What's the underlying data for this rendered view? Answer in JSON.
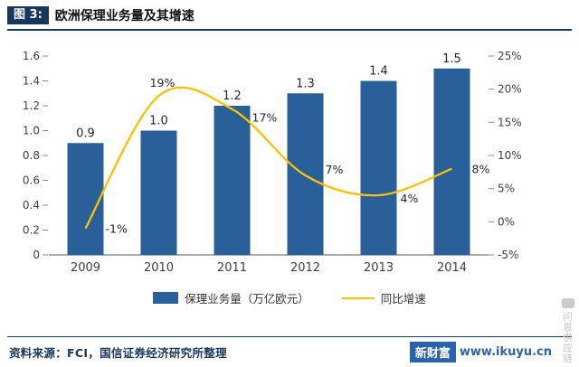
{
  "header": {
    "figure_tag": "图 3:",
    "title": "欧洲保理业务量及其增速"
  },
  "chart_data": {
    "type": "bar",
    "combo": "bar+line",
    "title": "欧洲保理业务量及其增速",
    "categories": [
      "2009",
      "2010",
      "2011",
      "2012",
      "2013",
      "2014"
    ],
    "series": [
      {
        "name": "保理业务量（万亿欧元）",
        "type": "bar",
        "axis": "left",
        "color": "#2A6099",
        "values": [
          0.9,
          1.0,
          1.2,
          1.3,
          1.4,
          1.5
        ],
        "labels": [
          "0.9",
          "1.0",
          "1.2",
          "1.3",
          "1.4",
          "1.5"
        ]
      },
      {
        "name": "同比增速",
        "type": "line",
        "axis": "right",
        "color": "#FFC000",
        "values": [
          -1,
          19,
          17,
          7,
          4,
          8
        ],
        "labels": [
          "-1%",
          "19%",
          "17%",
          "7%",
          "4%",
          "8%"
        ],
        "label_offsets": [
          [
            22,
            5,
            "start"
          ],
          [
            4,
            -10,
            "middle"
          ],
          [
            22,
            14,
            "start"
          ],
          [
            22,
            -2,
            "start"
          ],
          [
            24,
            8,
            "start"
          ],
          [
            22,
            5,
            "start"
          ]
        ]
      }
    ],
    "left_axis": {
      "min": 0,
      "max": 1.6,
      "step": 0.2,
      "ticks": [
        "0",
        "0.2",
        "0.4",
        "0.6",
        "0.8",
        "1.0",
        "1.2",
        "1.4",
        "1.6"
      ]
    },
    "right_axis": {
      "min": -5,
      "max": 25,
      "step": 5,
      "ticks": [
        "-5%",
        "0%",
        "5%",
        "10%",
        "15%",
        "20%",
        "25%"
      ]
    },
    "grid": false,
    "legend_position": "bottom"
  },
  "legend": [
    {
      "label": "保理业务量（万亿欧元）",
      "swatch": "bar"
    },
    {
      "label": "同比增速",
      "swatch": "line"
    }
  ],
  "footer": {
    "source": "资料来源：FCI，国信证券经济研究所整理"
  },
  "watermark": {
    "brand": "新财富",
    "url": "www.ikuyu.cn",
    "vertical": "问恩供应链"
  },
  "colors": {
    "navy": "#17375E",
    "bar": "#2A6099",
    "line": "#FFC000",
    "brand_blue": "#2A62AE"
  }
}
